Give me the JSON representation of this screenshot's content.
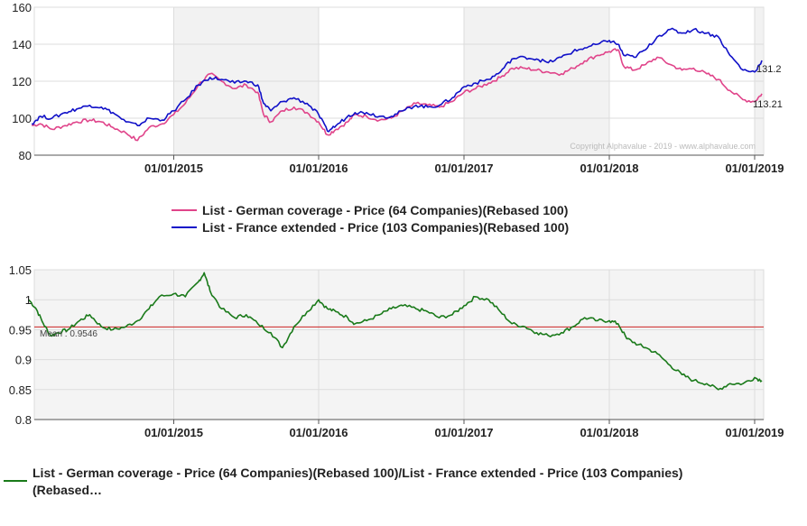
{
  "copyright": "Copyright Alphavalue - 2019 - www.alphavalue.com",
  "chart_data": [
    {
      "type": "line",
      "x_ticks": [
        "01/01/2015",
        "01/01/2016",
        "01/01/2017",
        "01/01/2018",
        "01/01/2019"
      ],
      "ylim": [
        80,
        160
      ],
      "y_ticks": [
        "80",
        "100",
        "120",
        "140",
        "160"
      ],
      "legend": [
        {
          "name": "List - German coverage - Price (64 Companies)(Rebased 100)",
          "color": "#e0448a"
        },
        {
          "name": "List - France extended - Price (103 Companies)(Rebased 100)",
          "color": "#1010c8"
        }
      ],
      "end_labels": [
        "131.2",
        "113.21"
      ],
      "series": [
        {
          "name": "List - German coverage - Price (64 Companies)(Rebased 100)",
          "color": "#e0448a",
          "points": [
            [
              2014.02,
              96
            ],
            [
              2014.08,
              97
            ],
            [
              2014.16,
              94
            ],
            [
              2014.25,
              96
            ],
            [
              2014.33,
              98
            ],
            [
              2014.42,
              99
            ],
            [
              2014.5,
              98
            ],
            [
              2014.58,
              95
            ],
            [
              2014.67,
              92
            ],
            [
              2014.75,
              88
            ],
            [
              2014.83,
              95
            ],
            [
              2014.92,
              97
            ],
            [
              2015.0,
              102
            ],
            [
              2015.08,
              108
            ],
            [
              2015.17,
              118
            ],
            [
              2015.25,
              124
            ],
            [
              2015.33,
              120
            ],
            [
              2015.42,
              116
            ],
            [
              2015.5,
              118
            ],
            [
              2015.58,
              114
            ],
            [
              2015.62,
              102
            ],
            [
              2015.67,
              98
            ],
            [
              2015.75,
              104
            ],
            [
              2015.83,
              106
            ],
            [
              2015.92,
              103
            ],
            [
              2016.0,
              98
            ],
            [
              2016.06,
              91
            ],
            [
              2016.12,
              94
            ],
            [
              2016.2,
              98
            ],
            [
              2016.25,
              102
            ],
            [
              2016.33,
              101
            ],
            [
              2016.42,
              99
            ],
            [
              2016.5,
              100
            ],
            [
              2016.58,
              104
            ],
            [
              2016.67,
              108
            ],
            [
              2016.75,
              107
            ],
            [
              2016.83,
              106
            ],
            [
              2016.92,
              109
            ],
            [
              2017.0,
              114
            ],
            [
              2017.08,
              116
            ],
            [
              2017.17,
              119
            ],
            [
              2017.25,
              122
            ],
            [
              2017.33,
              127
            ],
            [
              2017.42,
              127
            ],
            [
              2017.5,
              126
            ],
            [
              2017.58,
              125
            ],
            [
              2017.67,
              124
            ],
            [
              2017.75,
              127
            ],
            [
              2017.83,
              131
            ],
            [
              2017.92,
              134
            ],
            [
              2018.0,
              136
            ],
            [
              2018.06,
              137
            ],
            [
              2018.1,
              128
            ],
            [
              2018.17,
              126
            ],
            [
              2018.25,
              129
            ],
            [
              2018.33,
              133
            ],
            [
              2018.42,
              129
            ],
            [
              2018.5,
              126
            ],
            [
              2018.58,
              127
            ],
            [
              2018.67,
              124
            ],
            [
              2018.75,
              121
            ],
            [
              2018.83,
              115
            ],
            [
              2018.92,
              110
            ],
            [
              2019.0,
              109
            ],
            [
              2019.05,
              113.21
            ]
          ]
        },
        {
          "name": "List - France extended - Price (103 Companies)(Rebased 100)",
          "color": "#1010c8",
          "points": [
            [
              2014.02,
              97
            ],
            [
              2014.08,
              101
            ],
            [
              2014.16,
              100
            ],
            [
              2014.25,
              103
            ],
            [
              2014.33,
              105
            ],
            [
              2014.42,
              107
            ],
            [
              2014.5,
              106
            ],
            [
              2014.58,
              103
            ],
            [
              2014.67,
              98
            ],
            [
              2014.75,
              96
            ],
            [
              2014.83,
              100
            ],
            [
              2014.92,
              99
            ],
            [
              2015.0,
              104
            ],
            [
              2015.08,
              110
            ],
            [
              2015.17,
              118
            ],
            [
              2015.25,
              122
            ],
            [
              2015.33,
              121
            ],
            [
              2015.42,
              119
            ],
            [
              2015.5,
              120
            ],
            [
              2015.58,
              118
            ],
            [
              2015.62,
              108
            ],
            [
              2015.67,
              104
            ],
            [
              2015.75,
              109
            ],
            [
              2015.83,
              111
            ],
            [
              2015.92,
              108
            ],
            [
              2016.0,
              102
            ],
            [
              2016.06,
              93
            ],
            [
              2016.12,
              96
            ],
            [
              2016.2,
              101
            ],
            [
              2016.25,
              103
            ],
            [
              2016.33,
              103
            ],
            [
              2016.42,
              101
            ],
            [
              2016.5,
              101
            ],
            [
              2016.58,
              104
            ],
            [
              2016.67,
              107
            ],
            [
              2016.75,
              106
            ],
            [
              2016.83,
              107
            ],
            [
              2016.92,
              111
            ],
            [
              2017.0,
              117
            ],
            [
              2017.08,
              119
            ],
            [
              2017.17,
              121
            ],
            [
              2017.25,
              125
            ],
            [
              2017.33,
              132
            ],
            [
              2017.42,
              133
            ],
            [
              2017.5,
              132
            ],
            [
              2017.58,
              130
            ],
            [
              2017.67,
              133
            ],
            [
              2017.75,
              136
            ],
            [
              2017.83,
              138
            ],
            [
              2017.92,
              140
            ],
            [
              2018.0,
              142
            ],
            [
              2018.06,
              140
            ],
            [
              2018.1,
              134
            ],
            [
              2018.17,
              133
            ],
            [
              2018.25,
              137
            ],
            [
              2018.33,
              144
            ],
            [
              2018.42,
              148
            ],
            [
              2018.5,
              146
            ],
            [
              2018.58,
              148
            ],
            [
              2018.67,
              146
            ],
            [
              2018.75,
              144
            ],
            [
              2018.83,
              134
            ],
            [
              2018.92,
              126
            ],
            [
              2019.0,
              125
            ],
            [
              2019.05,
              131.2
            ]
          ]
        }
      ]
    },
    {
      "type": "line",
      "x_ticks": [
        "01/01/2015",
        "01/01/2016",
        "01/01/2017",
        "01/01/2018",
        "01/01/2019"
      ],
      "ylim": [
        0.8,
        1.05
      ],
      "y_ticks": [
        "0.8",
        "0.85",
        "0.9",
        "0.95",
        "1",
        "1.05"
      ],
      "mean": 0.9546,
      "mean_label": "Mean : 0.9546",
      "legend": [
        {
          "name": "List - German coverage - Price (64 Companies)(Rebased 100)/List - France extended - Price (103 Companies)",
          "name_cont": "(Rebased…",
          "color": "#1a7a1a"
        }
      ],
      "series": [
        {
          "name": "List - German coverage - Price (64 Companies)(Rebased 100)/List - France extended - Price (103 Companies)(Rebased…",
          "color": "#1a7a1a",
          "points": [
            [
              2014.0,
              1.0
            ],
            [
              2014.05,
              0.985
            ],
            [
              2014.1,
              0.96
            ],
            [
              2014.15,
              0.94
            ],
            [
              2014.2,
              0.945
            ],
            [
              2014.27,
              0.95
            ],
            [
              2014.35,
              0.965
            ],
            [
              2014.42,
              0.975
            ],
            [
              2014.5,
              0.955
            ],
            [
              2014.58,
              0.95
            ],
            [
              2014.67,
              0.955
            ],
            [
              2014.75,
              0.965
            ],
            [
              2014.83,
              0.985
            ],
            [
              2014.9,
              1.005
            ],
            [
              2015.0,
              1.01
            ],
            [
              2015.08,
              1.005
            ],
            [
              2015.17,
              1.03
            ],
            [
              2015.21,
              1.045
            ],
            [
              2015.25,
              1.015
            ],
            [
              2015.33,
              0.985
            ],
            [
              2015.42,
              0.97
            ],
            [
              2015.5,
              0.975
            ],
            [
              2015.58,
              0.96
            ],
            [
              2015.67,
              0.945
            ],
            [
              2015.75,
              0.92
            ],
            [
              2015.83,
              0.955
            ],
            [
              2015.92,
              0.98
            ],
            [
              2016.0,
              1.0
            ],
            [
              2016.06,
              0.985
            ],
            [
              2016.12,
              0.98
            ],
            [
              2016.2,
              0.97
            ],
            [
              2016.25,
              0.96
            ],
            [
              2016.33,
              0.965
            ],
            [
              2016.42,
              0.975
            ],
            [
              2016.5,
              0.985
            ],
            [
              2016.58,
              0.99
            ],
            [
              2016.67,
              0.985
            ],
            [
              2016.75,
              0.98
            ],
            [
              2016.83,
              0.97
            ],
            [
              2016.92,
              0.975
            ],
            [
              2017.0,
              0.99
            ],
            [
              2017.08,
              1.005
            ],
            [
              2017.17,
              1.0
            ],
            [
              2017.25,
              0.98
            ],
            [
              2017.33,
              0.96
            ],
            [
              2017.42,
              0.955
            ],
            [
              2017.5,
              0.945
            ],
            [
              2017.58,
              0.94
            ],
            [
              2017.67,
              0.945
            ],
            [
              2017.75,
              0.955
            ],
            [
              2017.83,
              0.97
            ],
            [
              2017.92,
              0.965
            ],
            [
              2018.0,
              0.965
            ],
            [
              2018.06,
              0.96
            ],
            [
              2018.12,
              0.935
            ],
            [
              2018.2,
              0.925
            ],
            [
              2018.25,
              0.92
            ],
            [
              2018.33,
              0.91
            ],
            [
              2018.42,
              0.89
            ],
            [
              2018.5,
              0.875
            ],
            [
              2018.58,
              0.865
            ],
            [
              2018.67,
              0.86
            ],
            [
              2018.75,
              0.85
            ],
            [
              2018.83,
              0.86
            ],
            [
              2018.92,
              0.86
            ],
            [
              2019.0,
              0.87
            ],
            [
              2019.05,
              0.865
            ]
          ]
        }
      ]
    }
  ]
}
